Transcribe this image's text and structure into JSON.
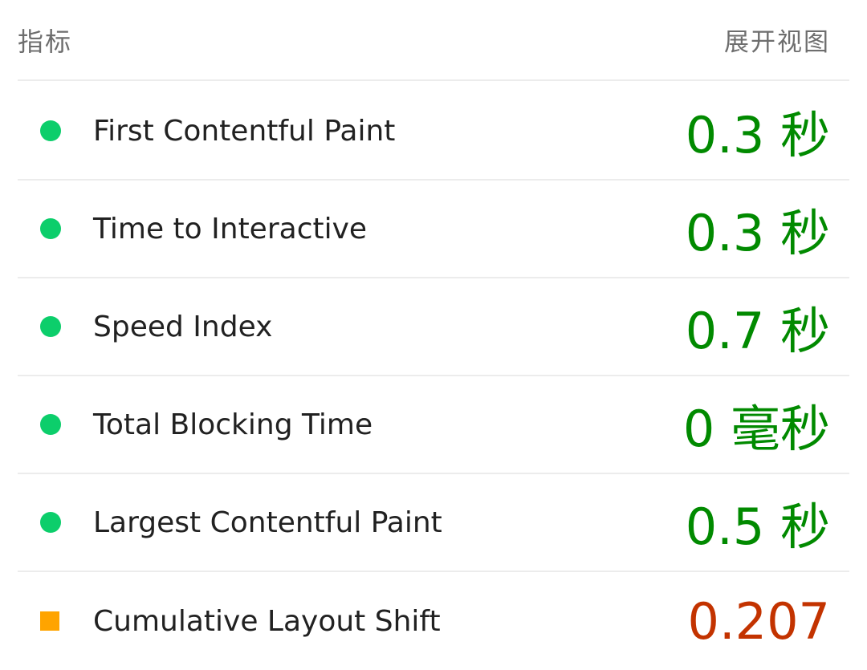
{
  "header": {
    "title": "指标",
    "expand_label": "展开视图"
  },
  "colors": {
    "pass_indicator": "#0cce6b",
    "pass_value": "#018a00",
    "average_indicator": "#ffa400",
    "average_value": "#c33300",
    "divider": "#ececec"
  },
  "metrics": [
    {
      "label": "First Contentful Paint",
      "value": "0.3 秒",
      "status": "pass",
      "indicator_icon": "green-circle-icon"
    },
    {
      "label": "Time to Interactive",
      "value": "0.3 秒",
      "status": "pass",
      "indicator_icon": "green-circle-icon"
    },
    {
      "label": "Speed Index",
      "value": "0.7 秒",
      "status": "pass",
      "indicator_icon": "green-circle-icon"
    },
    {
      "label": "Total Blocking Time",
      "value": "0 毫秒",
      "status": "pass",
      "indicator_icon": "green-circle-icon"
    },
    {
      "label": "Largest Contentful Paint",
      "value": "0.5 秒",
      "status": "pass",
      "indicator_icon": "green-circle-icon"
    },
    {
      "label": "Cumulative Layout Shift",
      "value": "0.207",
      "status": "average",
      "indicator_icon": "orange-square-icon"
    }
  ]
}
